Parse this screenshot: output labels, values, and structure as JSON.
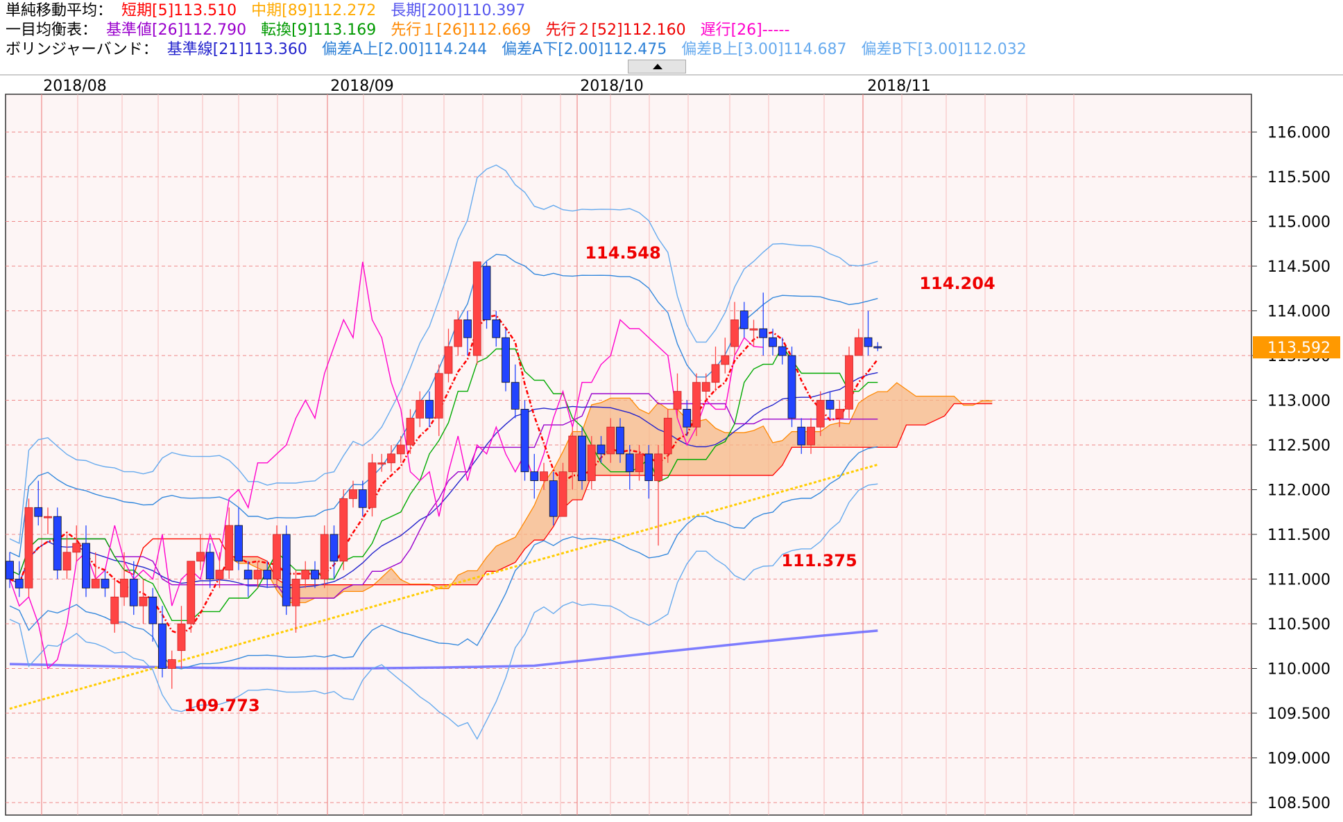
{
  "legend": {
    "sma": {
      "label": "単純移動平均：",
      "short": "短期[5]113.510",
      "mid": "中期[89]112.272",
      "long": "長期[200]110.397"
    },
    "ichimoku": {
      "label": "一目均衡表：",
      "kijun": "基準値[26]112.790",
      "tenkan": "転換[9]113.169",
      "senkou1": "先行１[26]112.669",
      "senkou2": "先行２[52]112.160",
      "chikou": "遅行[26]-----"
    },
    "bollinger": {
      "label": "ボリンジャーバンド：",
      "mid": "基準線[21]113.360",
      "a_up": "偏差A上[2.00]114.244",
      "a_down": "偏差A下[2.00]112.475",
      "b_up": "偏差B上[3.00]114.687",
      "b_down": "偏差B下[3.00]112.032"
    }
  },
  "colors": {
    "short": "#ff0000",
    "mid": "#ffcc00",
    "long": "#6666ff",
    "kijun": "#9900cc",
    "tenkan": "#00aa00",
    "senkou1": "#ff8800",
    "senkou2": "#ff0000",
    "chikou": "#ff00cc",
    "bb_mid": "#2222cc",
    "bb_a": "#3388dd",
    "bb_b": "#66aaee",
    "up": "#ff4444",
    "down": "#2244ff",
    "price": "#ff9900"
  },
  "chart_data": {
    "type": "candlestick",
    "months": [
      "2018/08",
      "2018/09",
      "2018/10",
      "2018/11"
    ],
    "yticks": [
      "116.000",
      "115.500",
      "115.000",
      "114.500",
      "114.000",
      "113.500",
      "113.000",
      "112.500",
      "112.000",
      "111.500",
      "111.000",
      "110.500",
      "110.000",
      "109.500",
      "109.000",
      "108.500"
    ],
    "ylim": [
      108.4,
      116.3
    ],
    "current_price": "113.592",
    "annotations": [
      "114.548",
      "114.204",
      "109.773",
      "111.375"
    ],
    "candles": [
      [
        111.2,
        111.0,
        111.3,
        110.9
      ],
      [
        111.0,
        110.9,
        111.2,
        110.8
      ],
      [
        110.9,
        111.8,
        111.9,
        110.8
      ],
      [
        111.8,
        111.7,
        112.1,
        111.6
      ],
      [
        111.7,
        111.7,
        111.8,
        111.5
      ],
      [
        111.7,
        111.1,
        111.8,
        111.0
      ],
      [
        111.1,
        111.3,
        111.5,
        111.0
      ],
      [
        111.3,
        111.4,
        111.6,
        111.2
      ],
      [
        111.4,
        110.9,
        111.6,
        110.8
      ],
      [
        110.9,
        111.0,
        111.3,
        110.9
      ],
      [
        111.0,
        110.9,
        111.1,
        110.8
      ],
      [
        110.5,
        110.8,
        111.0,
        110.4
      ],
      [
        110.8,
        111.0,
        111.3,
        110.7
      ],
      [
        111.0,
        110.7,
        111.2,
        110.6
      ],
      [
        110.7,
        110.8,
        111.0,
        110.5
      ],
      [
        110.8,
        110.5,
        110.9,
        110.3
      ],
      [
        110.5,
        110.0,
        110.7,
        109.9
      ],
      [
        110.0,
        110.1,
        110.2,
        109.773
      ],
      [
        110.2,
        110.5,
        110.7,
        110.0
      ],
      [
        110.5,
        111.2,
        111.2,
        110.4
      ],
      [
        111.2,
        111.3,
        111.5,
        111.1
      ],
      [
        111.3,
        111.0,
        111.4,
        110.9
      ],
      [
        111.0,
        111.1,
        111.3,
        110.9
      ],
      [
        111.1,
        111.6,
        111.8,
        111.0
      ],
      [
        111.6,
        111.2,
        111.8,
        111.1
      ],
      [
        111.1,
        111.0,
        111.2,
        110.8
      ],
      [
        111.0,
        111.1,
        111.2,
        110.9
      ],
      [
        111.1,
        111.0,
        111.2,
        110.9
      ],
      [
        111.0,
        111.5,
        111.6,
        110.9
      ],
      [
        111.5,
        110.7,
        111.6,
        110.6
      ],
      [
        110.7,
        111.0,
        111.1,
        110.4
      ],
      [
        111.0,
        111.1,
        111.2,
        110.9
      ],
      [
        111.1,
        111.0,
        111.2,
        110.9
      ],
      [
        111.0,
        111.5,
        111.6,
        110.9
      ],
      [
        111.5,
        111.2,
        111.6,
        111.0
      ],
      [
        111.2,
        111.9,
        112.0,
        111.1
      ],
      [
        111.9,
        112.0,
        112.1,
        111.8
      ],
      [
        112.0,
        111.8,
        112.1,
        111.7
      ],
      [
        111.8,
        112.3,
        112.4,
        111.7
      ],
      [
        112.3,
        112.3,
        112.4,
        112.2
      ],
      [
        112.3,
        112.4,
        112.5,
        112.2
      ],
      [
        112.4,
        112.5,
        112.6,
        112.3
      ],
      [
        112.5,
        112.8,
        112.9,
        112.4
      ],
      [
        112.8,
        113.0,
        113.1,
        112.7
      ],
      [
        113.0,
        112.8,
        113.1,
        112.7
      ],
      [
        112.8,
        113.3,
        113.4,
        112.6
      ],
      [
        113.3,
        113.6,
        113.8,
        113.2
      ],
      [
        113.6,
        113.9,
        114.0,
        113.5
      ],
      [
        113.9,
        113.7,
        114.0,
        113.5
      ],
      [
        113.5,
        114.548,
        114.548,
        113.4
      ],
      [
        114.5,
        113.9,
        114.548,
        113.8
      ],
      [
        113.9,
        113.7,
        114.0,
        113.6
      ],
      [
        113.7,
        113.2,
        113.8,
        113.1
      ],
      [
        113.2,
        112.9,
        113.4,
        112.8
      ],
      [
        112.9,
        112.2,
        113.0,
        112.1
      ],
      [
        112.2,
        112.1,
        112.4,
        111.9
      ],
      [
        112.1,
        112.2,
        112.3,
        112.0
      ],
      [
        112.1,
        111.7,
        112.2,
        111.6
      ],
      [
        111.7,
        112.2,
        112.3,
        111.7
      ],
      [
        112.2,
        112.6,
        112.7,
        112.0
      ],
      [
        112.6,
        112.1,
        112.7,
        112.0
      ],
      [
        112.1,
        112.5,
        112.6,
        112.0
      ],
      [
        112.5,
        112.4,
        112.6,
        112.3
      ],
      [
        112.4,
        112.7,
        112.8,
        112.3
      ],
      [
        112.7,
        112.4,
        112.8,
        112.3
      ],
      [
        112.4,
        112.2,
        112.5,
        112.0
      ],
      [
        112.2,
        112.4,
        112.5,
        112.1
      ],
      [
        112.4,
        112.1,
        112.5,
        111.9
      ],
      [
        112.1,
        112.4,
        112.5,
        111.375
      ],
      [
        112.4,
        112.8,
        112.9,
        112.3
      ],
      [
        112.9,
        113.1,
        113.3,
        112.8
      ],
      [
        112.9,
        112.7,
        113.0,
        112.6
      ],
      [
        112.7,
        113.2,
        113.3,
        112.6
      ],
      [
        113.1,
        113.2,
        113.3,
        113.0
      ],
      [
        113.2,
        113.4,
        113.6,
        113.1
      ],
      [
        113.4,
        113.5,
        113.7,
        113.3
      ],
      [
        113.6,
        113.9,
        114.1,
        113.5
      ],
      [
        114.0,
        113.8,
        114.1,
        113.7
      ],
      [
        113.8,
        113.8,
        113.9,
        113.6
      ],
      [
        113.8,
        113.7,
        114.204,
        113.5
      ],
      [
        113.7,
        113.6,
        113.8,
        113.5
      ],
      [
        113.6,
        113.5,
        113.7,
        113.4
      ],
      [
        113.5,
        112.8,
        113.6,
        112.7
      ],
      [
        112.7,
        112.5,
        112.8,
        112.4
      ],
      [
        112.5,
        112.7,
        112.8,
        112.4
      ],
      [
        112.7,
        113.0,
        113.1,
        112.6
      ],
      [
        113.0,
        112.9,
        113.1,
        112.8
      ],
      [
        112.8,
        112.9,
        113.0,
        112.7
      ],
      [
        112.9,
        113.5,
        113.6,
        112.8
      ],
      [
        113.5,
        113.7,
        113.8,
        113.5
      ],
      [
        113.7,
        113.6,
        114.0,
        113.5
      ],
      [
        113.6,
        113.592,
        113.65,
        113.55
      ]
    ]
  }
}
